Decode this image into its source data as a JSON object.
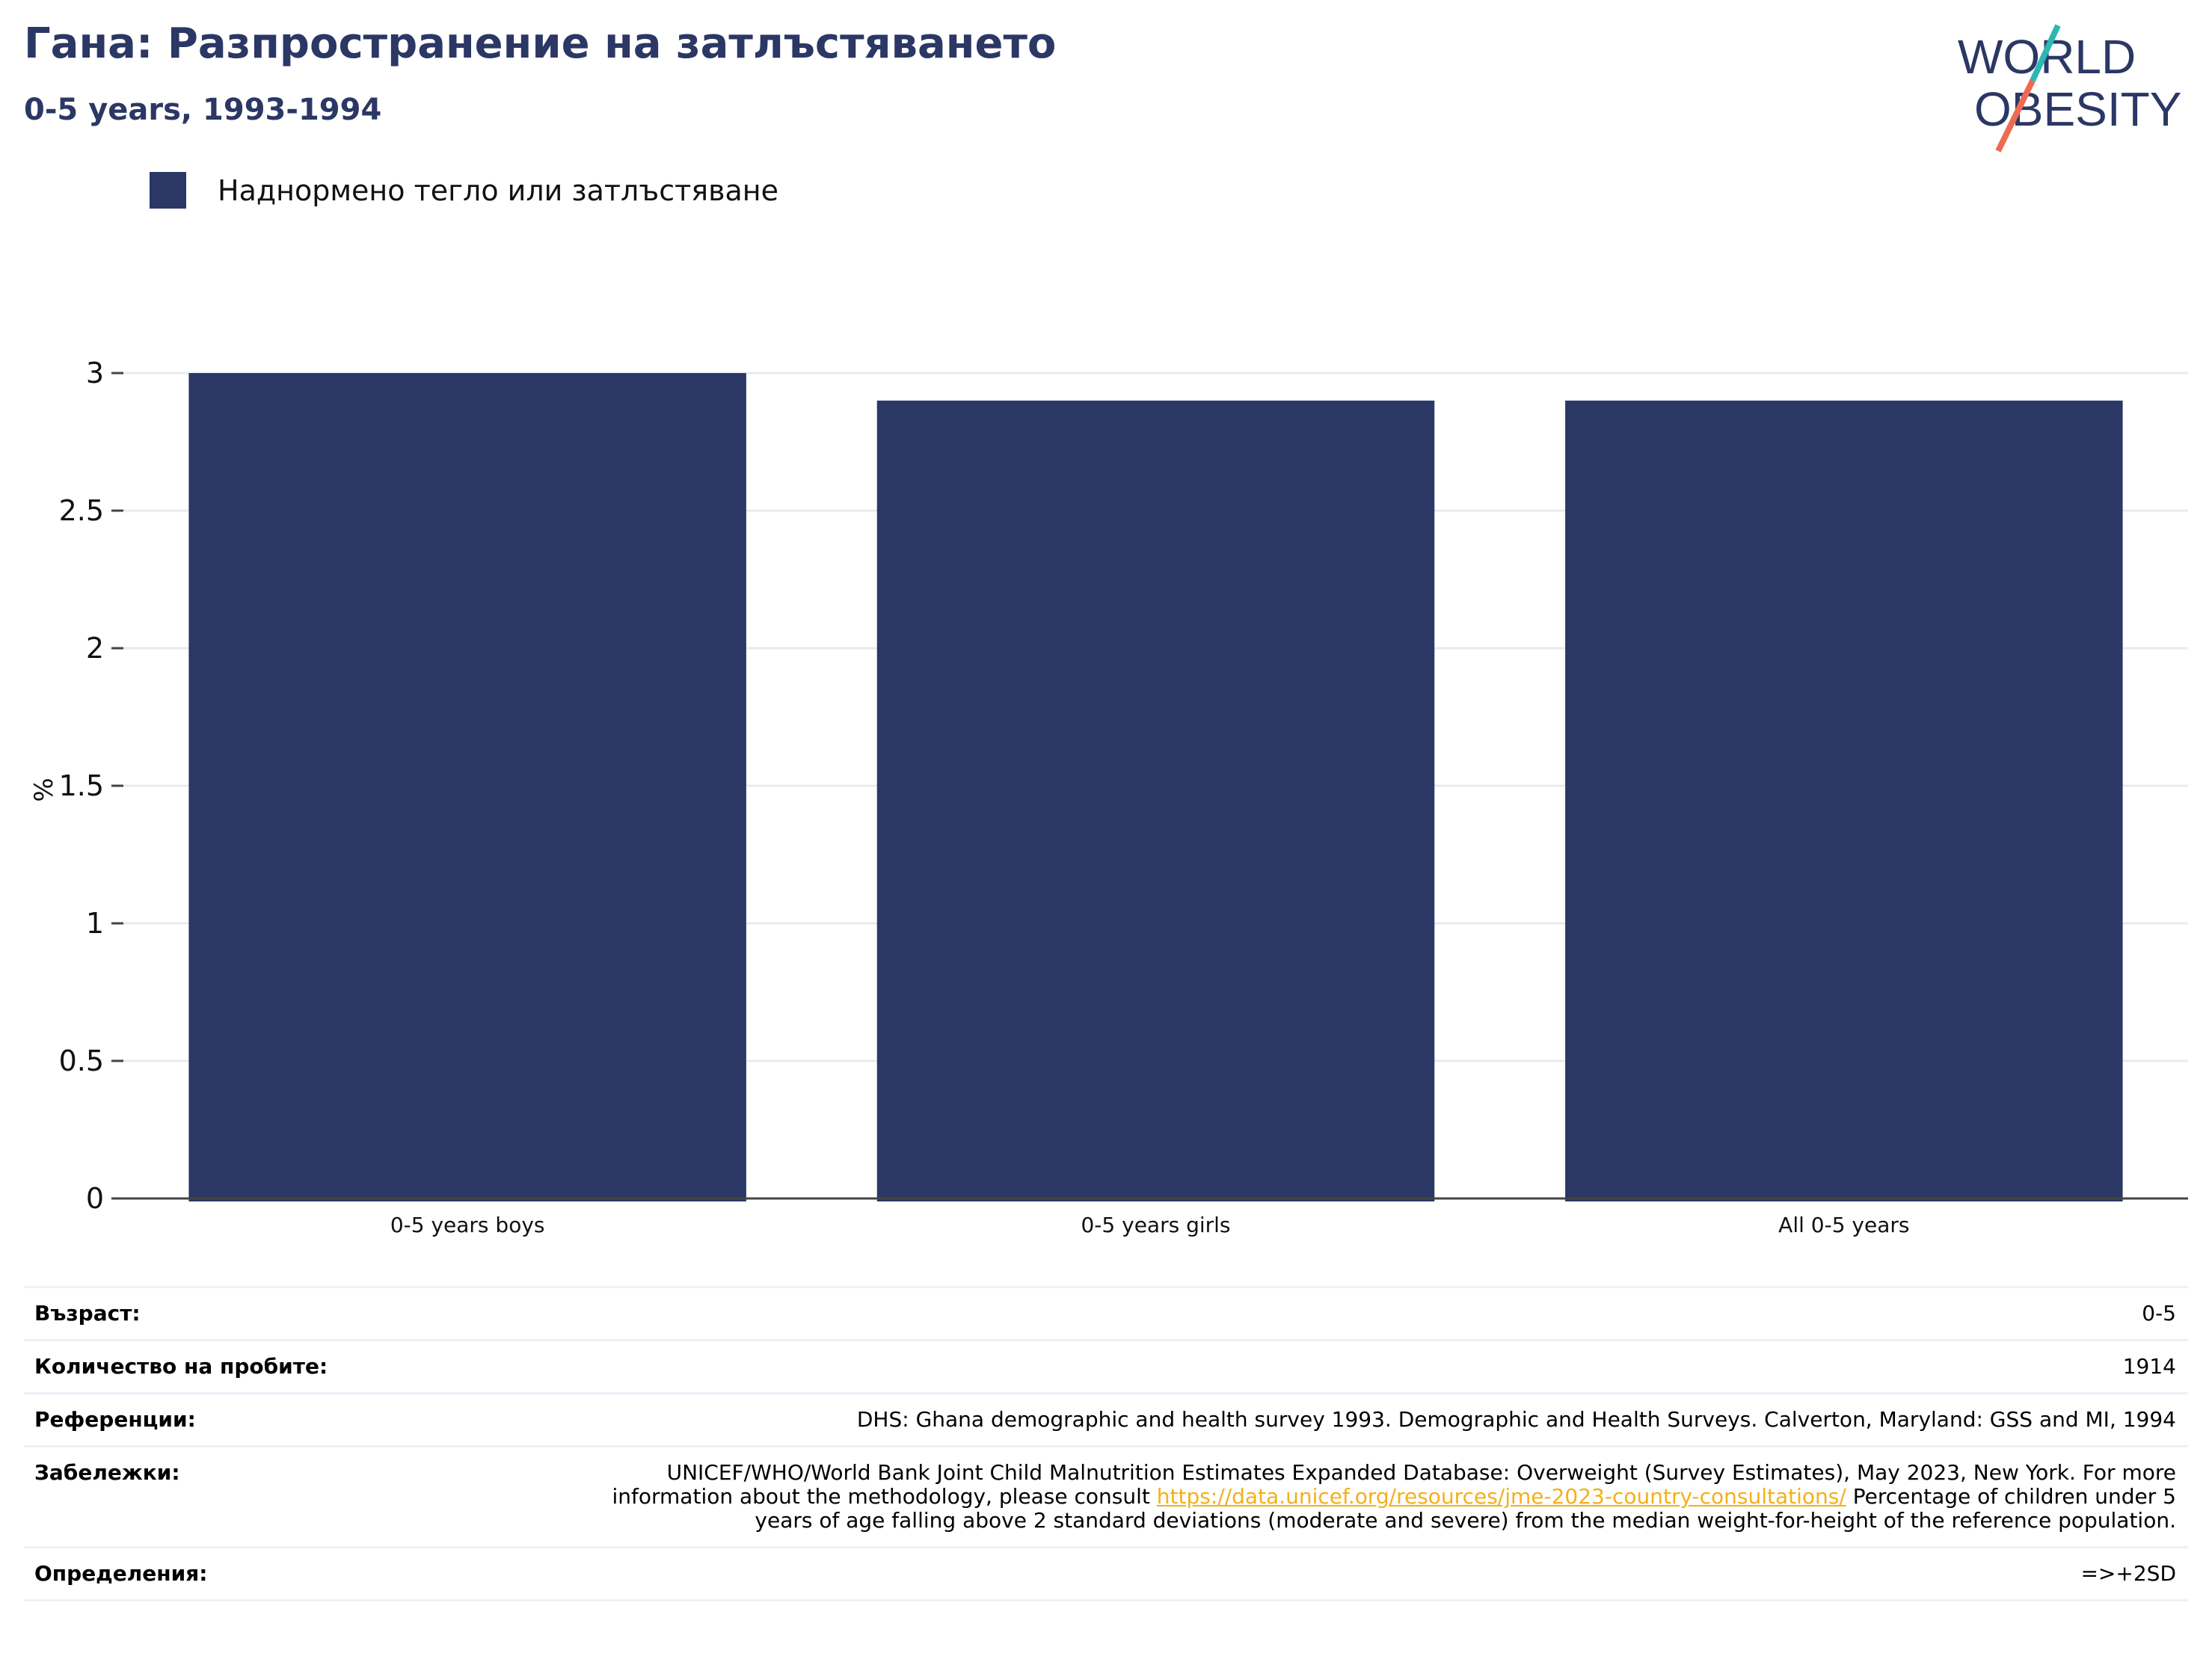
{
  "header": {
    "title": "Гана: Разпространение на затлъстяването",
    "subtitle": "0-5 years, 1993-1994"
  },
  "logo": {
    "line1": "WORLD",
    "line2": "OBESITY",
    "slash_colors": [
      "#2cb7b4",
      "#ee6a52"
    ]
  },
  "colors": {
    "brand": "#2b3764",
    "bar": "#2b3764",
    "link": "#f3b01b",
    "grid": "#e9e9f0"
  },
  "chart_data": {
    "type": "bar",
    "categories": [
      "0-5 years boys",
      "0-5 years girls",
      "All 0-5 years"
    ],
    "series": [
      {
        "name": "Наднормено тегло или затлъстяване",
        "values": [
          3.0,
          2.9,
          2.9
        ]
      }
    ],
    "ylabel": "%",
    "xlabel": "",
    "ylim": [
      0,
      3
    ],
    "yticks": [
      "0",
      "0.5",
      "1",
      "1.5",
      "2",
      "2.5",
      "3"
    ],
    "grid": true,
    "legend_position": "top-left"
  },
  "info": {
    "age_label": "Възраст:",
    "age_value": "0-5",
    "sample_label": "Количество на пробите:",
    "sample_value": "1914",
    "references_label": "Референции:",
    "references_value": "DHS: Ghana demographic and health survey 1993. Demographic and Health Surveys. Calverton, Maryland: GSS and MI, 1994",
    "notes_label": "Забележки:",
    "notes_text_before": "UNICEF/WHO/World Bank Joint Child Malnutrition Estimates Expanded Database: Overweight (Survey Estimates), May 2023, New York. For more information about the methodology, please consult ",
    "notes_link": "https://data.unicef.org/resources/jme-2023-country-consultations/",
    "notes_text_after": " Percentage of children under 5 years of age falling above 2 standard deviations (moderate and severe) from the median weight-for-height of the reference population.",
    "definitions_label": "Определения:",
    "definitions_value": "=>+2SD"
  }
}
